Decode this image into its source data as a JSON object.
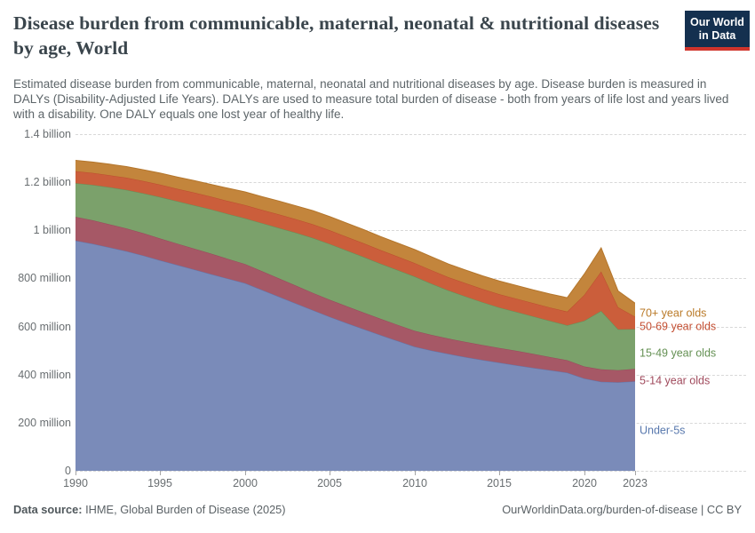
{
  "header": {
    "title": "Disease burden from communicable, maternal, neonatal & nutritional diseases by age, World",
    "subtitle": "Estimated disease burden from communicable, maternal, neonatal and nutritional diseases by age. Disease burden is measured in DALYs (Disability-Adjusted Life Years). DALYs are used to measure total burden of disease - both from years of life lost and years lived with a disability. One DALY equals one lost year of healthy life.",
    "logo": {
      "line1": "Our World",
      "line2": "in Data",
      "bg_color": "#14304f",
      "stripe_color": "#d0342c"
    }
  },
  "chart_data": {
    "type": "area",
    "stacked": true,
    "title": "Disease burden from communicable, maternal, neonatal & nutritional diseases by age, World",
    "ylabel": "DALYs",
    "values_unit": "million DALYs",
    "ylim_millions": [
      0,
      1400
    ],
    "grid": "dashed-horizontal",
    "legend_position": "right",
    "x": [
      1990,
      1991,
      1992,
      1993,
      1994,
      1995,
      1996,
      1997,
      1998,
      1999,
      2000,
      2001,
      2002,
      2003,
      2004,
      2005,
      2006,
      2007,
      2008,
      2009,
      2010,
      2011,
      2012,
      2013,
      2014,
      2015,
      2016,
      2017,
      2018,
      2019,
      2020,
      2021,
      2022,
      2023
    ],
    "series": [
      {
        "name": "Under-5s",
        "fill": "#7a8bb9",
        "line": "#6374a9",
        "label_color": "#5878ad",
        "values": [
          957,
          944,
          929,
          913,
          895,
          875,
          856,
          837,
          818,
          799,
          780,
          752,
          724,
          696,
          668,
          640,
          614,
          589,
          564,
          540,
          516,
          500,
          486,
          473,
          461,
          450,
          439,
          428,
          418,
          408,
          384,
          370,
          368,
          372
        ]
      },
      {
        "name": "5-14 year olds",
        "fill": "#a65866",
        "line": "#984a5b",
        "label_color": "#a04a5c",
        "values": [
          99,
          98,
          96,
          95,
          93,
          91,
          89,
          87,
          85,
          82,
          80,
          78,
          76,
          74,
          72,
          71,
          70,
          69,
          68,
          67,
          66,
          65,
          64,
          63,
          62,
          61,
          60,
          58,
          55,
          52,
          50,
          52,
          50,
          52
        ]
      },
      {
        "name": "15-49 year olds",
        "fill": "#7ba16b",
        "line": "#678e58",
        "label_color": "#649053",
        "values": [
          140,
          147,
          154,
          160,
          166,
          172,
          176,
          180,
          184,
          187,
          190,
          200,
          210,
          220,
          228,
          232,
          232,
          231,
          229,
          228,
          226,
          213,
          200,
          189,
          178,
          168,
          162,
          156,
          150,
          145,
          190,
          243,
          170,
          165
        ]
      },
      {
        "name": "50-69 year olds",
        "fill": "#cb5e3b",
        "line": "#bc4e2e",
        "label_color": "#c44f33",
        "values": [
          50,
          50,
          50,
          51,
          51,
          52,
          52,
          53,
          53,
          54,
          55,
          55,
          56,
          56,
          57,
          57,
          57,
          57,
          57,
          56,
          56,
          56,
          55,
          55,
          55,
          55,
          55,
          55,
          56,
          57,
          107,
          164,
          92,
          52
        ]
      },
      {
        "name": "70+ year olds",
        "fill": "#c3853c",
        "line": "#b4762c",
        "label_color": "#ba7a28",
        "values": [
          45,
          45,
          46,
          46,
          47,
          48,
          49,
          50,
          51,
          53,
          55,
          55,
          56,
          56,
          57,
          57,
          57,
          57,
          56,
          56,
          56,
          56,
          55,
          55,
          55,
          55,
          55,
          55,
          56,
          58,
          87,
          98,
          68,
          56
        ]
      }
    ]
  },
  "axes": {
    "y_ticks": [
      {
        "label": "1.4 billion",
        "value_millions": 1400
      },
      {
        "label": "1.2 billion",
        "value_millions": 1200
      },
      {
        "label": "1 billion",
        "value_millions": 1000
      },
      {
        "label": "800 million",
        "value_millions": 800
      },
      {
        "label": "600 million",
        "value_millions": 600
      },
      {
        "label": "400 million",
        "value_millions": 400
      },
      {
        "label": "200 million",
        "value_millions": 200
      },
      {
        "label": "0",
        "value_millions": 0
      }
    ],
    "x_ticks": [
      {
        "label": "1990",
        "year": 1990
      },
      {
        "label": "1995",
        "year": 1995
      },
      {
        "label": "2000",
        "year": 2000
      },
      {
        "label": "2005",
        "year": 2005
      },
      {
        "label": "2010",
        "year": 2010
      },
      {
        "label": "2015",
        "year": 2015
      },
      {
        "label": "2020",
        "year": 2020
      },
      {
        "label": "2023",
        "year": 2023
      }
    ]
  },
  "footer": {
    "source_label": "Data source:",
    "source_value": " IHME, Global Burden of Disease (2025)",
    "link": "OurWorldinData.org/burden-of-disease | CC BY"
  }
}
